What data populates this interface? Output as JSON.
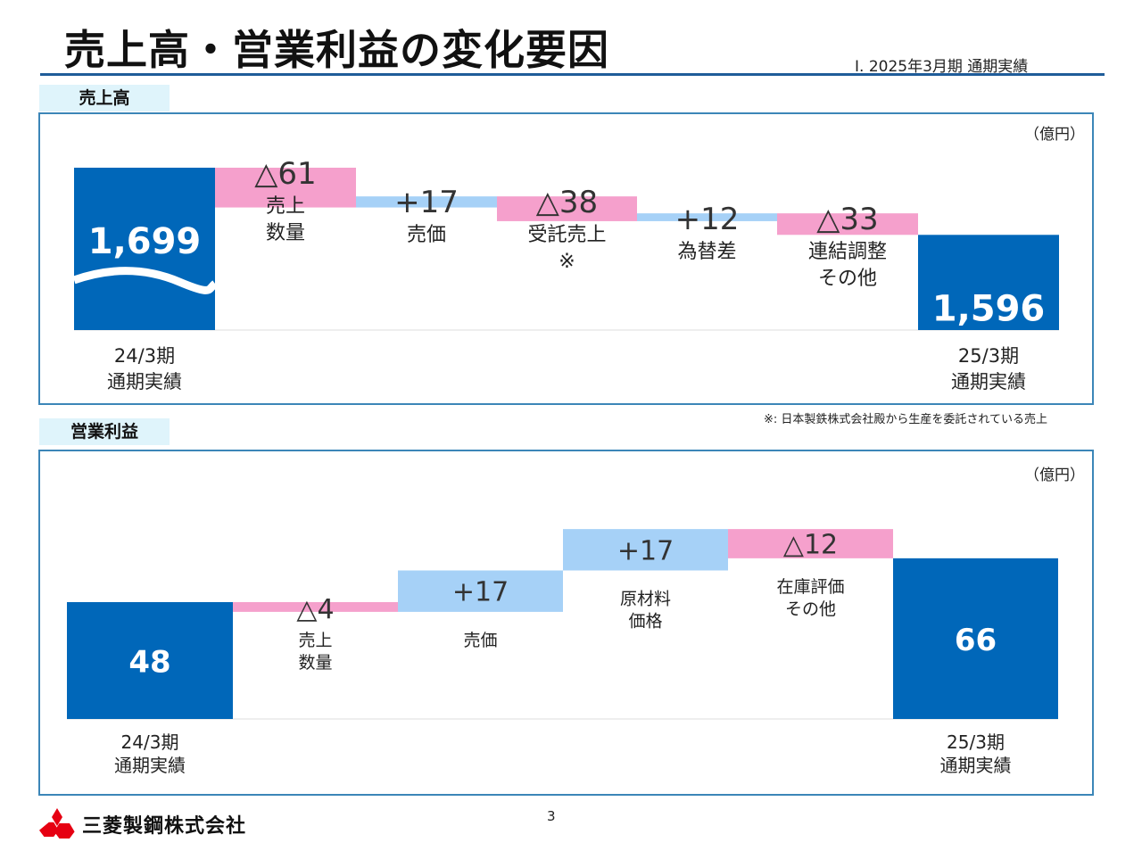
{
  "header": {
    "title": "売上高・営業利益の変化要因",
    "subtitle": "Ⅰ. 2025年3月期 通期実績"
  },
  "colors": {
    "base_bar": "#0067b9",
    "increase_bar": "#a6d1f7",
    "decrease_bar": "#f5a0cc",
    "frame": "#3c86b8",
    "tab_bg": "#dff4fb"
  },
  "footer": {
    "page_number": "3",
    "company": "三菱製鋼株式会社",
    "note": "※: 日本製鉄株式会社殿から生産を委託されている売上"
  },
  "chart_data": [
    {
      "type": "bar",
      "subtype": "waterfall",
      "section_label": "売上高",
      "unit": "（億円）",
      "categories": [
        "24/3期\n通期実績",
        "売上\n数量",
        "売価",
        "受託売上\n※",
        "為替差",
        "連結調整\nその他",
        "25/3期\n通期実績"
      ],
      "values": [
        1699,
        -61,
        17,
        -38,
        12,
        -33,
        1596
      ],
      "value_labels": [
        "1,699",
        "△61",
        "+17",
        "△38",
        "+12",
        "△33",
        "1,596"
      ],
      "bar_kinds": [
        "total",
        "delta",
        "delta",
        "delta",
        "delta",
        "delta",
        "total"
      ],
      "axis_break": true,
      "ylim": [
        1450,
        1740
      ]
    },
    {
      "type": "bar",
      "subtype": "waterfall",
      "section_label": "営業利益",
      "unit": "（億円）",
      "categories": [
        "24/3期\n通期実績",
        "売上\n数量",
        "売価",
        "原材料\n価格",
        "在庫評価\nその他",
        "25/3期\n通期実績"
      ],
      "values": [
        48,
        -4,
        17,
        17,
        -12,
        66
      ],
      "value_labels": [
        "48",
        "△4",
        "+17",
        "+17",
        "△12",
        "66"
      ],
      "bar_kinds": [
        "total",
        "delta",
        "delta",
        "delta",
        "delta",
        "total"
      ],
      "axis_break": false,
      "ylim": [
        0,
        85
      ]
    }
  ]
}
